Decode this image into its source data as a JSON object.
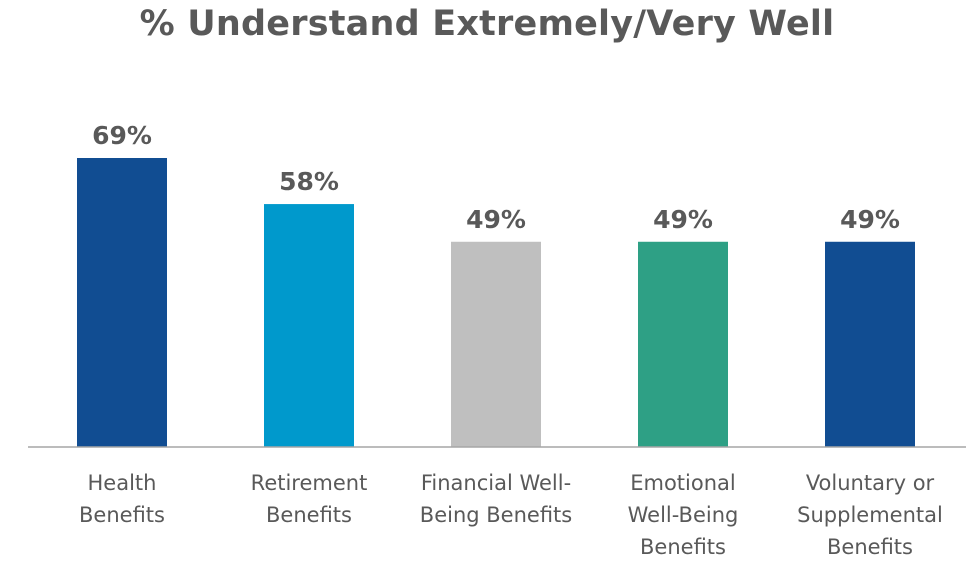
{
  "chart_data": {
    "type": "bar",
    "title": "% Understand Extremely/Very Well",
    "categories": [
      [
        "Health",
        "Benefits"
      ],
      [
        "Retirement",
        "Benefits"
      ],
      [
        "Financial Well-",
        "Being Benefits"
      ],
      [
        "Emotional",
        "Well-Being",
        "Benefits"
      ],
      [
        "Voluntary or",
        "Supplemental",
        "Benefits"
      ]
    ],
    "values": [
      69,
      58,
      49,
      49,
      49
    ],
    "value_labels": [
      "69%",
      "58%",
      "49%",
      "49%",
      "49%"
    ],
    "colors": [
      "#114d92",
      "#0099cc",
      "#bfbfbf",
      "#2ea085",
      "#114d92"
    ],
    "ylim": [
      0,
      69
    ],
    "xlabel": "",
    "ylabel": "",
    "grid": false,
    "legend": "none"
  }
}
